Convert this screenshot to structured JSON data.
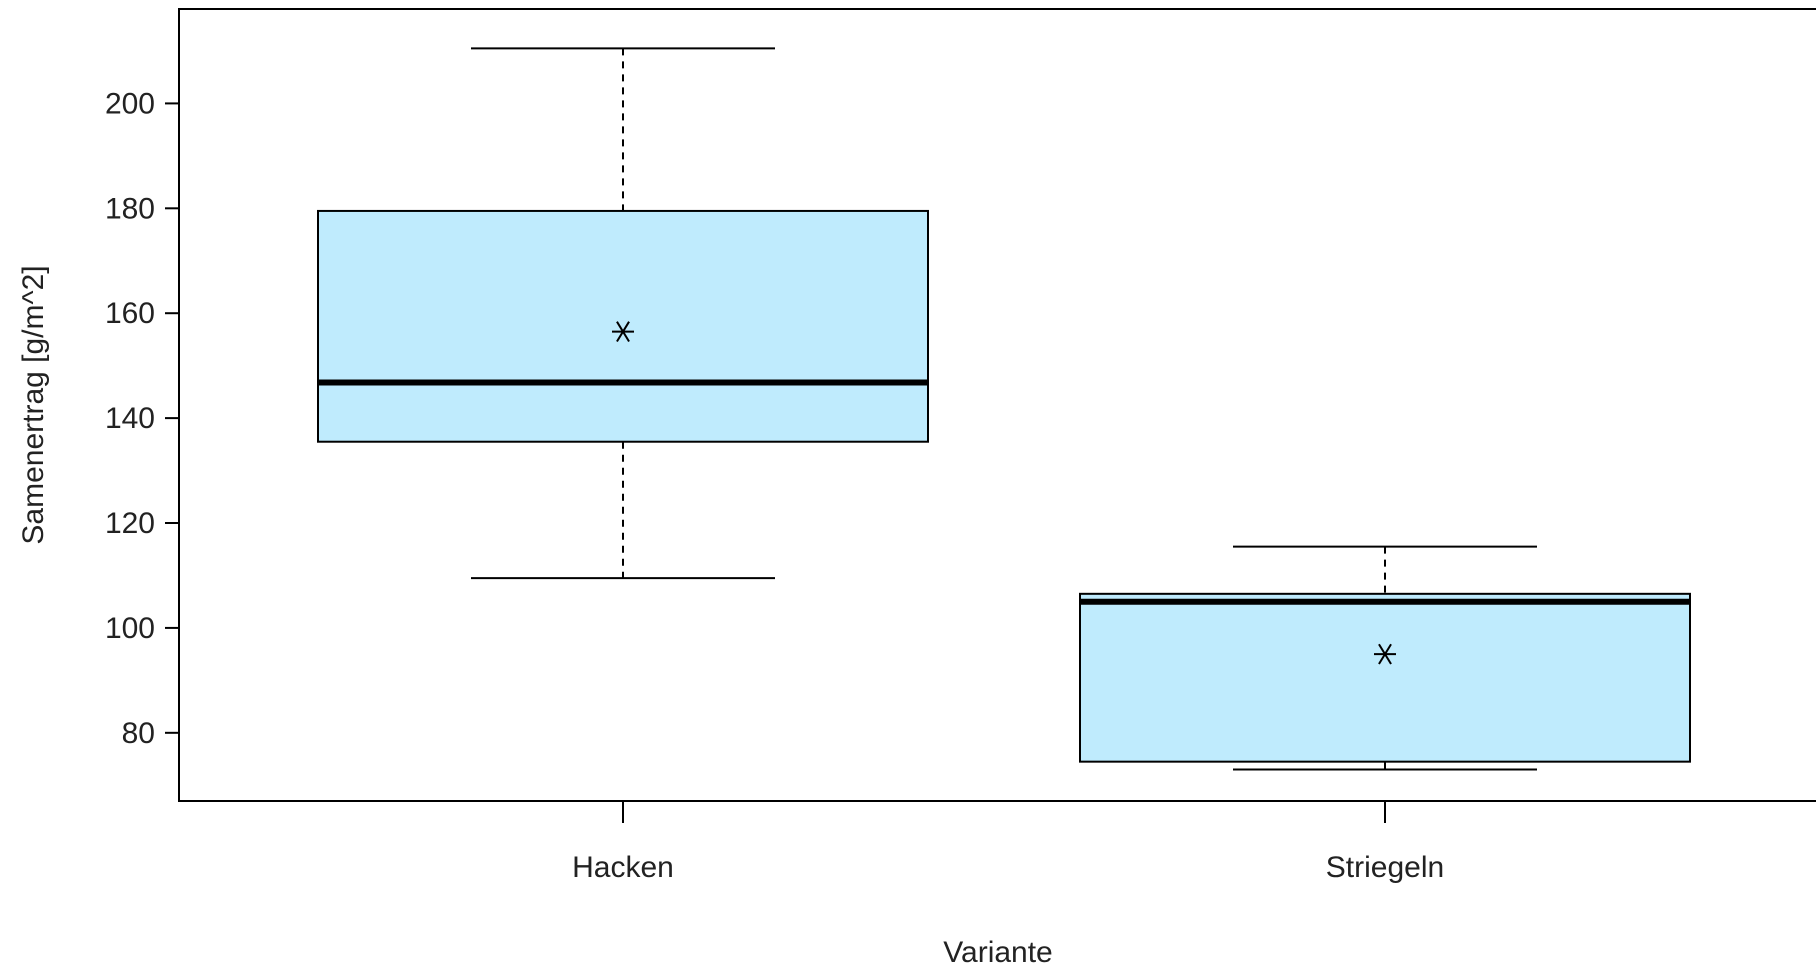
{
  "chart_data": {
    "type": "boxplot",
    "xlabel": "Variante",
    "ylabel": "Samenertrag [g/m^2]",
    "ylim": [
      67,
      218
    ],
    "yticks": [
      80,
      100,
      120,
      140,
      160,
      180,
      200
    ],
    "grid": false,
    "categories": [
      "Hacken",
      "Striegeln"
    ],
    "boxes": [
      {
        "category": "Hacken",
        "whisker_low": 109.5,
        "q1": 135.5,
        "median": 146.8,
        "q3": 179.5,
        "whisker_high": 210.5,
        "mean": 156.5
      },
      {
        "category": "Striegeln",
        "whisker_low": 73.0,
        "q1": 74.5,
        "median": 105.0,
        "q3": 106.5,
        "whisker_high": 115.5,
        "mean": 95.0
      }
    ],
    "colors": {
      "box_fill": "#BFEBFD",
      "stroke": "#000000",
      "text": "#222222"
    }
  }
}
